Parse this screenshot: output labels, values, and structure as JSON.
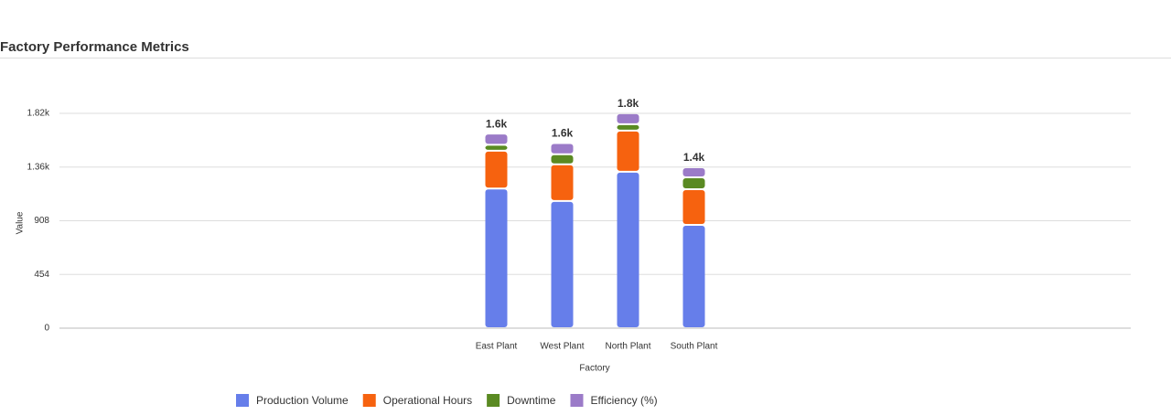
{
  "chart_data": {
    "type": "stacked_bar",
    "title": "Factory Performance Metrics",
    "x_label": "Factory",
    "y_label": "Value",
    "categories": [
      "East Plant",
      "West Plant",
      "North Plant",
      "South Plant"
    ],
    "series": [
      {
        "name": "Production Volume",
        "color": "#667eea",
        "values": [
          1180,
          1075,
          1322,
          873
        ]
      },
      {
        "name": "Operational Hours",
        "color": "#f6620f",
        "values": [
          320,
          310,
          348,
          302
        ]
      },
      {
        "name": "Downtime",
        "color": "#5a8a22",
        "values": [
          50,
          85,
          54,
          100
        ]
      },
      {
        "name": "Efficiency (%)",
        "color": "#9b7bc8",
        "values": [
          95,
          95,
          93,
          85
        ]
      }
    ],
    "total_labels": [
      "1.6k",
      "1.6k",
      "1.8k",
      "1.4k"
    ],
    "ylim": [
      0,
      1816
    ],
    "yticks": [
      0,
      454,
      908,
      {
        "value": 1362,
        "label": "1.36k"
      },
      {
        "value": 1816,
        "label": "1.82k"
      }
    ],
    "grid": true
  }
}
